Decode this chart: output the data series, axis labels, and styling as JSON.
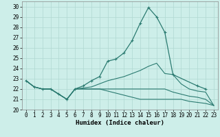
{
  "title": "",
  "xlabel": "Humidex (Indice chaleur)",
  "ylabel": "",
  "xlim": [
    -0.5,
    23.5
  ],
  "ylim": [
    20,
    30.5
  ],
  "yticks": [
    20,
    21,
    22,
    23,
    24,
    25,
    26,
    27,
    28,
    29,
    30
  ],
  "xticks": [
    0,
    1,
    2,
    3,
    4,
    5,
    6,
    7,
    8,
    9,
    10,
    11,
    12,
    13,
    14,
    15,
    16,
    17,
    18,
    19,
    20,
    21,
    22,
    23
  ],
  "bg_color": "#cdeee9",
  "grid_color": "#b0d8d2",
  "line_color": "#2a7a70",
  "series_main": {
    "x": [
      0,
      1,
      2,
      3,
      4,
      5,
      6,
      7,
      8,
      9,
      10,
      11,
      12,
      13,
      14,
      15,
      16,
      17,
      18,
      21,
      22
    ],
    "y": [
      22.8,
      22.2,
      22.0,
      22.0,
      21.5,
      21.0,
      22.0,
      22.3,
      22.8,
      23.2,
      24.7,
      24.9,
      25.5,
      26.7,
      28.4,
      29.9,
      29.0,
      27.5,
      23.4,
      22.3,
      22.0
    ]
  },
  "series2": {
    "x": [
      0,
      1,
      2,
      3,
      4,
      5,
      6,
      7,
      8,
      9,
      10,
      11,
      12,
      13,
      14,
      15,
      16,
      17,
      18,
      19,
      20,
      21,
      22,
      23
    ],
    "y": [
      22.8,
      22.2,
      22.0,
      22.0,
      21.5,
      21.0,
      22.0,
      22.1,
      22.2,
      22.5,
      22.8,
      23.0,
      23.2,
      23.5,
      23.8,
      24.2,
      24.5,
      23.5,
      23.4,
      22.5,
      22.0,
      21.8,
      21.7,
      20.4
    ]
  },
  "series3": {
    "x": [
      0,
      1,
      2,
      3,
      4,
      5,
      6,
      7,
      8,
      9,
      10,
      11,
      12,
      13,
      14,
      15,
      16,
      17,
      18,
      19,
      20,
      21,
      22,
      23
    ],
    "y": [
      22.8,
      22.2,
      22.0,
      22.0,
      21.5,
      21.0,
      22.0,
      22.0,
      22.0,
      22.0,
      22.0,
      22.0,
      22.0,
      22.0,
      22.0,
      22.0,
      22.0,
      22.0,
      21.7,
      21.5,
      21.3,
      21.2,
      21.0,
      20.4
    ]
  },
  "series4": {
    "x": [
      0,
      1,
      2,
      3,
      4,
      5,
      6,
      7,
      8,
      9,
      10,
      11,
      12,
      13,
      14,
      15,
      16,
      17,
      18,
      19,
      20,
      21,
      22,
      23
    ],
    "y": [
      22.8,
      22.2,
      22.0,
      22.0,
      21.5,
      21.0,
      22.0,
      22.0,
      22.0,
      22.0,
      21.8,
      21.6,
      21.4,
      21.2,
      21.0,
      21.0,
      21.0,
      21.0,
      21.0,
      21.0,
      20.8,
      20.7,
      20.6,
      20.4
    ]
  }
}
